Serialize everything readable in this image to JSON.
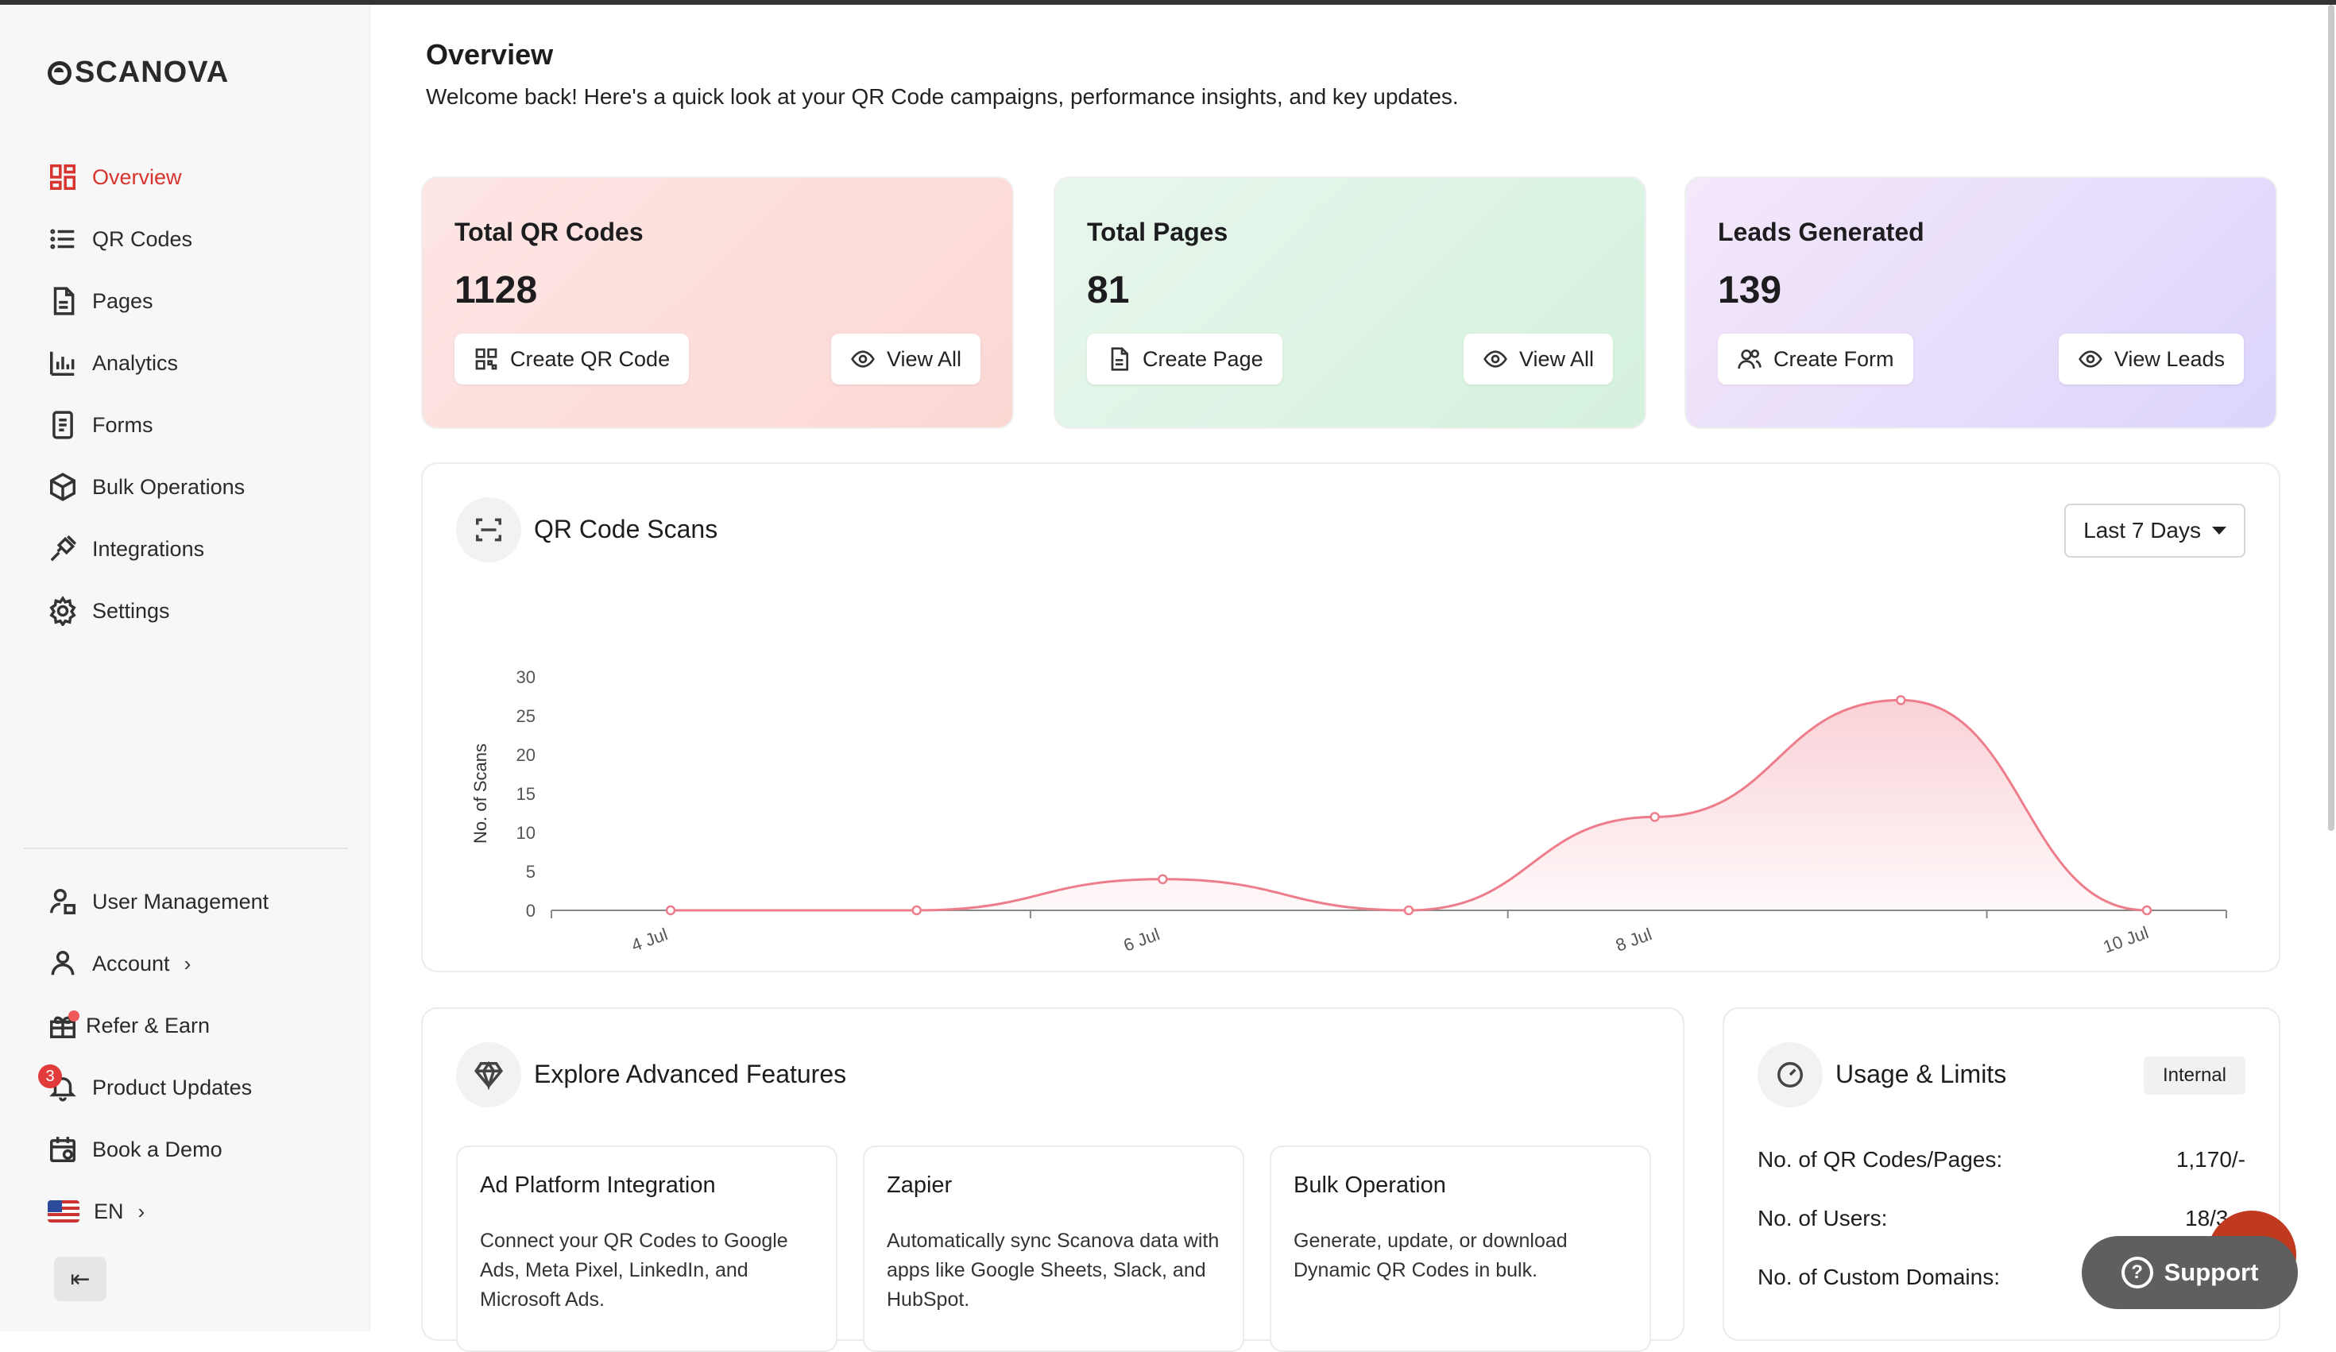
{
  "app": {
    "logo": "SCANOVA"
  },
  "sidebar": {
    "items": [
      {
        "label": "Overview",
        "icon": "dashboard-icon"
      },
      {
        "label": "QR Codes",
        "icon": "list-icon"
      },
      {
        "label": "Pages",
        "icon": "page-icon"
      },
      {
        "label": "Analytics",
        "icon": "bar-chart-icon"
      },
      {
        "label": "Forms",
        "icon": "form-icon"
      },
      {
        "label": "Bulk Operations",
        "icon": "cube-icon"
      },
      {
        "label": "Integrations",
        "icon": "plug-icon"
      },
      {
        "label": "Settings",
        "icon": "gear-icon"
      }
    ],
    "bottom": {
      "user_management": "User Management",
      "account": "Account",
      "refer": "Refer & Earn",
      "updates": "Product Updates",
      "updates_count": "3",
      "demo": "Book a Demo",
      "language": "EN"
    }
  },
  "header": {
    "title": "Overview",
    "subtitle": "Welcome back! Here's a quick look at your QR Code campaigns, performance insights, and key updates."
  },
  "stats": [
    {
      "label": "Total QR Codes",
      "value": "1128",
      "primary": "Create QR Code",
      "secondary": "View All"
    },
    {
      "label": "Total Pages",
      "value": "81",
      "primary": "Create Page",
      "secondary": "View All"
    },
    {
      "label": "Leads Generated",
      "value": "139",
      "primary": "Create Form",
      "secondary": "View Leads"
    }
  ],
  "scans": {
    "title": "QR Code Scans",
    "range": "Last 7 Days"
  },
  "chart_data": {
    "type": "area",
    "title": "",
    "xlabel": "",
    "ylabel": "No. of Scans",
    "ylim": [
      0,
      30
    ],
    "yticks": [
      0,
      5,
      10,
      15,
      20,
      25,
      30
    ],
    "xtick_labels": [
      "4 Jul",
      "6 Jul",
      "8 Jul",
      "10 Jul"
    ],
    "x": [
      "4 Jul",
      "5 Jul",
      "6 Jul",
      "7 Jul",
      "8 Jul",
      "9 Jul",
      "10 Jul"
    ],
    "values": [
      0,
      0,
      4,
      0,
      12,
      27,
      0
    ],
    "color": "#ee7d8c",
    "grid": false
  },
  "features": {
    "title": "Explore Advanced Features",
    "items": [
      {
        "title": "Ad Platform Integration",
        "desc": "Connect your QR Codes to Google Ads, Meta Pixel, LinkedIn, and Microsoft Ads."
      },
      {
        "title": "Zapier",
        "desc": "Automatically sync Scanova data with apps like Google Sheets, Slack, and HubSpot."
      },
      {
        "title": "Bulk Operation",
        "desc": "Generate, update, or download Dynamic QR Codes in bulk."
      }
    ]
  },
  "usage": {
    "title": "Usage & Limits",
    "tag": "Internal",
    "rows": [
      {
        "label": "No. of QR Codes/Pages:",
        "value": "1,170/-"
      },
      {
        "label": "No. of Users:",
        "value": "18/3"
      },
      {
        "label": "No. of Custom Domains:",
        "value": ""
      }
    ]
  },
  "support": {
    "label": "Support"
  }
}
